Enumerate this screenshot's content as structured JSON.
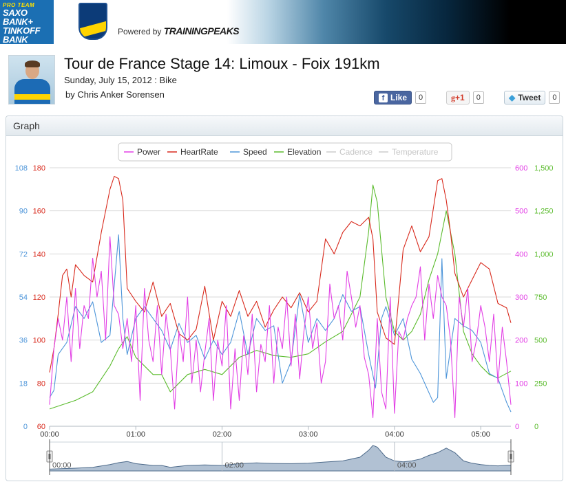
{
  "header": {
    "sponsor_line1": "PRO TEAM",
    "sponsor_line2": "SAXO",
    "sponsor_line3": "BANK+",
    "sponsor_line4": "TINKOFF",
    "sponsor_line5": "BANK",
    "powered_by": "Powered by",
    "powered_brand": "TRAININGPEAKS"
  },
  "workout": {
    "title": "Tour de France Stage 14: Limoux - Foix 191km",
    "subtitle": "Sunday, July 15, 2012 : Bike",
    "byline": "by Chris Anker Sorensen"
  },
  "social": {
    "like_label": "Like",
    "like_count": "0",
    "gplus_label": "+1",
    "gplus_count": "0",
    "tweet_label": "Tweet",
    "tweet_count": "0"
  },
  "panel": {
    "title": "Graph"
  },
  "colors": {
    "power": "#e23ee5",
    "heartrate": "#d8291c",
    "speed": "#4d95d9",
    "elevation": "#5abb2c",
    "disabled": "#cccccc"
  },
  "chart_data": {
    "type": "line",
    "x_unit": "elapsed time",
    "x_ticks": [
      "00:00",
      "01:00",
      "02:00",
      "03:00",
      "04:00",
      "05:00"
    ],
    "navigator_ticks": [
      "00:00",
      "02:00",
      "04:00"
    ],
    "x_range_hours": [
      0,
      5.35
    ],
    "legend": [
      {
        "name": "Power",
        "color": "#e23ee5",
        "enabled": true
      },
      {
        "name": "HeartRate",
        "color": "#d8291c",
        "enabled": true
      },
      {
        "name": "Speed",
        "color": "#4d95d9",
        "enabled": true
      },
      {
        "name": "Elevation",
        "color": "#5abb2c",
        "enabled": true
      },
      {
        "name": "Cadence",
        "color": "#cccccc",
        "enabled": false
      },
      {
        "name": "Temperature",
        "color": "#cccccc",
        "enabled": false
      }
    ],
    "axes": {
      "speed": {
        "ticks": [
          "0",
          "18",
          "36",
          "54",
          "72",
          "90",
          "108"
        ],
        "range": [
          0,
          108
        ],
        "color": "#4d95d9"
      },
      "heartrate": {
        "ticks": [
          "60",
          "80",
          "100",
          "120",
          "140",
          "160",
          "180"
        ],
        "range": [
          60,
          180
        ],
        "color": "#d8291c"
      },
      "power": {
        "ticks": [
          "0",
          "100",
          "200",
          "300",
          "400",
          "500",
          "600"
        ],
        "range": [
          0,
          600
        ],
        "color": "#e23ee5"
      },
      "elevation": {
        "ticks": [
          "0",
          "250",
          "500",
          "750",
          "1,000",
          "1,250",
          "1,500"
        ],
        "range": [
          0,
          1500
        ],
        "color": "#5abb2c"
      }
    },
    "series": [
      {
        "name": "HeartRate",
        "axis": "heartrate",
        "x": [
          0,
          0.05,
          0.1,
          0.15,
          0.2,
          0.25,
          0.3,
          0.4,
          0.5,
          0.6,
          0.7,
          0.75,
          0.8,
          0.85,
          0.9,
          1.0,
          1.1,
          1.2,
          1.3,
          1.4,
          1.5,
          1.6,
          1.7,
          1.8,
          1.9,
          2.0,
          2.1,
          2.2,
          2.3,
          2.4,
          2.5,
          2.6,
          2.7,
          2.8,
          2.9,
          3.0,
          3.1,
          3.2,
          3.3,
          3.4,
          3.5,
          3.6,
          3.7,
          3.75,
          3.8,
          3.9,
          4.0,
          4.1,
          4.2,
          4.3,
          4.4,
          4.5,
          4.55,
          4.6,
          4.65,
          4.7,
          4.8,
          4.9,
          5.0,
          5.1,
          5.2,
          5.3,
          5.35
        ],
        "values": [
          85,
          96,
          112,
          130,
          133,
          120,
          135,
          130,
          127,
          150,
          170,
          176,
          175,
          165,
          124,
          118,
          113,
          127,
          111,
          117,
          103,
          100,
          105,
          125,
          100,
          118,
          111,
          123,
          111,
          118,
          106,
          114,
          120,
          115,
          122,
          113,
          118,
          147,
          140,
          150,
          155,
          153,
          157,
          147,
          113,
          101,
          98,
          142,
          153,
          141,
          148,
          174,
          175,
          165,
          150,
          131,
          120,
          128,
          136,
          133,
          117,
          115,
          108
        ]
      },
      {
        "name": "Speed",
        "axis": "speed",
        "x": [
          0,
          0.05,
          0.1,
          0.2,
          0.3,
          0.4,
          0.5,
          0.6,
          0.7,
          0.8,
          0.85,
          0.9,
          1.0,
          1.1,
          1.2,
          1.3,
          1.4,
          1.5,
          1.6,
          1.7,
          1.8,
          1.9,
          2.0,
          2.1,
          2.2,
          2.3,
          2.4,
          2.5,
          2.6,
          2.7,
          2.8,
          2.9,
          3.0,
          3.1,
          3.2,
          3.3,
          3.4,
          3.5,
          3.6,
          3.7,
          3.78,
          3.85,
          3.9,
          4.0,
          4.1,
          4.2,
          4.3,
          4.4,
          4.45,
          4.5,
          4.55,
          4.6,
          4.7,
          4.8,
          4.9,
          5.0,
          5.1,
          5.2,
          5.3,
          5.35
        ],
        "values": [
          12,
          15,
          30,
          35,
          50,
          45,
          52,
          35,
          38,
          80,
          45,
          30,
          45,
          50,
          45,
          40,
          32,
          43,
          35,
          38,
          28,
          36,
          30,
          35,
          48,
          30,
          45,
          40,
          42,
          18,
          27,
          55,
          35,
          45,
          40,
          45,
          55,
          48,
          50,
          30,
          16,
          45,
          50,
          38,
          45,
          28,
          22,
          14,
          10,
          12,
          70,
          20,
          45,
          42,
          40,
          35,
          22,
          20,
          10,
          6
        ]
      },
      {
        "name": "Elevation",
        "axis": "elevation",
        "x": [
          0,
          0.3,
          0.5,
          0.7,
          0.8,
          0.9,
          1.0,
          1.1,
          1.2,
          1.3,
          1.4,
          1.6,
          1.8,
          2.0,
          2.2,
          2.4,
          2.6,
          2.8,
          3.0,
          3.2,
          3.4,
          3.6,
          3.7,
          3.75,
          3.8,
          3.9,
          4.0,
          4.1,
          4.2,
          4.3,
          4.4,
          4.5,
          4.6,
          4.7,
          4.8,
          4.9,
          5.0,
          5.1,
          5.2,
          5.35
        ],
        "values": [
          100,
          150,
          200,
          350,
          450,
          520,
          400,
          350,
          300,
          300,
          200,
          300,
          330,
          300,
          400,
          440,
          410,
          400,
          420,
          490,
          550,
          750,
          1130,
          1400,
          1300,
          750,
          550,
          500,
          550,
          650,
          850,
          1000,
          1250,
          1000,
          550,
          420,
          350,
          300,
          280,
          320
        ]
      },
      {
        "name": "Power",
        "axis": "power",
        "x": [
          0,
          0.05,
          0.1,
          0.15,
          0.2,
          0.25,
          0.3,
          0.35,
          0.4,
          0.45,
          0.5,
          0.55,
          0.6,
          0.65,
          0.7,
          0.75,
          0.8,
          0.85,
          0.9,
          0.95,
          1.0,
          1.05,
          1.1,
          1.15,
          1.2,
          1.25,
          1.3,
          1.35,
          1.4,
          1.45,
          1.5,
          1.55,
          1.6,
          1.65,
          1.7,
          1.75,
          1.8,
          1.85,
          1.9,
          1.95,
          2.0,
          2.05,
          2.1,
          2.15,
          2.2,
          2.25,
          2.3,
          2.35,
          2.4,
          2.45,
          2.5,
          2.55,
          2.6,
          2.65,
          2.7,
          2.75,
          2.8,
          2.85,
          2.9,
          2.95,
          3.0,
          3.05,
          3.1,
          3.15,
          3.2,
          3.25,
          3.3,
          3.35,
          3.4,
          3.45,
          3.5,
          3.55,
          3.6,
          3.65,
          3.7,
          3.75,
          3.8,
          3.85,
          3.9,
          3.95,
          4.0,
          4.05,
          4.1,
          4.15,
          4.2,
          4.25,
          4.3,
          4.35,
          4.4,
          4.45,
          4.5,
          4.55,
          4.6,
          4.65,
          4.7,
          4.75,
          4.8,
          4.85,
          4.9,
          4.95,
          5.0,
          5.05,
          5.1,
          5.15,
          5.2,
          5.25,
          5.3,
          5.35
        ],
        "values": [
          50,
          180,
          250,
          200,
          300,
          150,
          320,
          180,
          280,
          250,
          390,
          300,
          360,
          200,
          440,
          280,
          260,
          180,
          250,
          150,
          280,
          60,
          320,
          200,
          150,
          280,
          120,
          260,
          180,
          40,
          220,
          150,
          300,
          100,
          200,
          80,
          170,
          250,
          60,
          200,
          140,
          280,
          40,
          180,
          60,
          210,
          120,
          260,
          80,
          190,
          150,
          280,
          100,
          230,
          180,
          300,
          140,
          260,
          110,
          220,
          300,
          180,
          240,
          100,
          150,
          330,
          250,
          280,
          200,
          360,
          300,
          230,
          280,
          160,
          120,
          20,
          250,
          80,
          40,
          300,
          30,
          220,
          200,
          250,
          280,
          300,
          370,
          200,
          330,
          250,
          350,
          300,
          280,
          200,
          20,
          300,
          230,
          320,
          150,
          200,
          280,
          230,
          150,
          260,
          100,
          230,
          150,
          50
        ]
      }
    ]
  }
}
